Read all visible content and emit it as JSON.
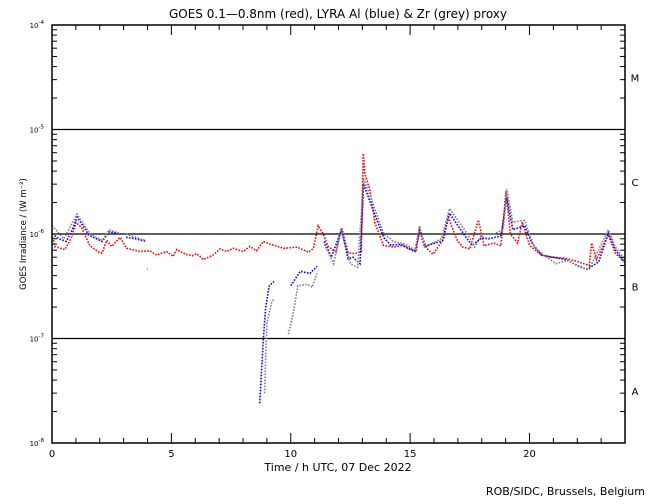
{
  "chart_data": {
    "type": "scatter",
    "title": "GOES 0.1—0.8nm (red), LYRA Al (blue) & Zr (grey) proxy",
    "xlabel": "Time / h UTC, 07 Dec 2022",
    "ylabel": "GOES Irradiance / (W m⁻²)",
    "xlim": [
      0,
      24
    ],
    "ylim": [
      1e-08,
      0.0001
    ],
    "yscale": "log",
    "x_ticks": [
      0,
      5,
      10,
      15,
      20
    ],
    "y_ticks": [
      {
        "base": "10",
        "exp": "-4"
      },
      {
        "base": "10",
        "exp": "-5"
      },
      {
        "base": "10",
        "exp": "-6"
      },
      {
        "base": "10",
        "exp": "-7"
      },
      {
        "base": "10",
        "exp": "-8"
      }
    ],
    "flare_classes": [
      {
        "label": "M",
        "value": 3.16e-05
      },
      {
        "label": "C",
        "value": 3.16e-06
      },
      {
        "label": "B",
        "value": 3.16e-07
      },
      {
        "label": "A",
        "value": 3.16e-08
      }
    ],
    "class_lines": [
      1e-05,
      1e-06,
      1e-07
    ],
    "credit": "ROB/SIDC, Brussels, Belgium",
    "series": [
      {
        "name": "GOES 0.1-0.8nm",
        "color": "#ff0000",
        "segments": [
          [
            [
              0.03,
              9.3e-07
            ],
            [
              0.12,
              7.6e-07
            ],
            [
              0.54,
              7.1e-07
            ],
            [
              0.82,
              9.3e-07
            ],
            [
              1.0,
              1.29e-06
            ],
            [
              1.24,
              1.15e-06
            ],
            [
              1.59,
              7.7e-07
            ],
            [
              2.0,
              6.6e-07
            ],
            [
              2.1,
              6.6e-07
            ],
            [
              2.29,
              8.7e-07
            ],
            [
              2.5,
              7.6e-07
            ],
            [
              2.85,
              9.3e-07
            ],
            [
              3.13,
              7.3e-07
            ],
            [
              3.69,
              6.8e-07
            ],
            [
              4.1,
              6.9e-07
            ],
            [
              4.38,
              6.3e-07
            ],
            [
              4.8,
              6.8e-07
            ],
            [
              5.08,
              6.1e-07
            ],
            [
              5.22,
              7.1e-07
            ],
            [
              5.6,
              6.4e-07
            ],
            [
              5.9,
              6.2e-07
            ],
            [
              6.05,
              6.5e-07
            ],
            [
              6.34,
              5.7e-07
            ],
            [
              6.75,
              6.3e-07
            ],
            [
              7.04,
              7.2e-07
            ],
            [
              7.3,
              6.8e-07
            ],
            [
              7.6,
              7.3e-07
            ],
            [
              8.0,
              6.8e-07
            ],
            [
              8.29,
              7.6e-07
            ],
            [
              8.57,
              6.9e-07
            ],
            [
              8.85,
              8.5e-07
            ],
            [
              9.13,
              8e-07
            ],
            [
              9.7,
              7.3e-07
            ],
            [
              10.26,
              7.5e-07
            ],
            [
              10.75,
              6.7e-07
            ],
            [
              10.95,
              7.3e-07
            ],
            [
              11.15,
              1.2e-06
            ],
            [
              11.36,
              1e-06
            ],
            [
              11.57,
              7.6e-07
            ],
            [
              11.9,
              6.7e-07
            ],
            [
              12.13,
              1.15e-06
            ],
            [
              12.4,
              6.6e-07
            ],
            [
              12.7,
              6.5e-07
            ],
            [
              12.95,
              6.8e-07
            ],
            [
              13.04,
              5.9e-06
            ],
            [
              13.1,
              3.8e-06
            ],
            [
              13.32,
              2.6e-06
            ],
            [
              13.53,
              1.27e-06
            ],
            [
              13.88,
              7.8e-07
            ],
            [
              14.3,
              7.5e-07
            ],
            [
              14.7,
              7.8e-07
            ],
            [
              15.25,
              6.8e-07
            ],
            [
              15.39,
              1.1e-06
            ],
            [
              15.7,
              7.3e-07
            ],
            [
              15.95,
              6.4e-07
            ],
            [
              16.4,
              8.9e-07
            ],
            [
              16.6,
              1.44e-06
            ],
            [
              16.95,
              8.9e-07
            ],
            [
              17.2,
              7.5e-07
            ],
            [
              17.5,
              7.2e-07
            ],
            [
              17.86,
              1.36e-06
            ],
            [
              18.1,
              7.7e-07
            ],
            [
              18.5,
              8.2e-07
            ],
            [
              18.8,
              7.7e-07
            ],
            [
              19.02,
              2.6e-06
            ],
            [
              19.2,
              1e-06
            ],
            [
              19.5,
              8.2e-07
            ],
            [
              19.7,
              1.3e-06
            ],
            [
              20.0,
              7.8e-07
            ],
            [
              20.5,
              6.3e-07
            ],
            [
              20.9,
              6e-07
            ],
            [
              21.4,
              5.9e-07
            ],
            [
              21.95,
              5.5e-07
            ],
            [
              22.5,
              5e-07
            ],
            [
              22.6,
              8.2e-07
            ],
            [
              22.8,
              5.7e-07
            ],
            [
              23.3,
              9.9e-07
            ],
            [
              23.6,
              6.5e-07
            ],
            [
              23.95,
              5.5e-07
            ]
          ]
        ]
      },
      {
        "name": "LYRA Al proxy",
        "color": "#0000ff",
        "segments": [
          [
            [
              0.0,
              1e-06
            ],
            [
              0.3,
              9e-07
            ],
            [
              0.6,
              8.5e-07
            ],
            [
              0.85,
              1.1e-06
            ],
            [
              1.05,
              1.45e-06
            ],
            [
              1.56,
              9.7e-07
            ],
            [
              2.1,
              8.5e-07
            ],
            [
              2.4,
              1.05e-06
            ],
            [
              2.9,
              1e-06
            ]
          ],
          [
            [
              3.1,
              9.3e-07
            ],
            [
              3.5,
              9e-07
            ],
            [
              3.94,
              8.5e-07
            ]
          ],
          [
            [
              4.0,
              4.6e-07
            ],
            [
              4.02,
              4.6e-07
            ]
          ],
          [
            [
              8.7,
              2.4e-08
            ],
            [
              8.85,
              9.8e-08
            ],
            [
              8.95,
              2e-07
            ],
            [
              9.1,
              3.2e-07
            ],
            [
              9.3,
              3.5e-07
            ]
          ],
          [
            [
              10.0,
              3.2e-07
            ],
            [
              10.4,
              4.4e-07
            ],
            [
              10.8,
              4.2e-07
            ],
            [
              11.1,
              4.9e-07
            ]
          ],
          [
            [
              11.4,
              8.5e-07
            ],
            [
              11.7,
              6e-07
            ],
            [
              12.13,
              1.1e-06
            ],
            [
              12.4,
              5.8e-07
            ],
            [
              12.6,
              6e-07
            ],
            [
              12.9,
              5.2e-07
            ],
            [
              13.05,
              3e-06
            ],
            [
              13.3,
              2.1e-06
            ],
            [
              13.6,
              1.37e-06
            ],
            [
              13.9,
              9.2e-07
            ],
            [
              14.2,
              7.8e-07
            ],
            [
              14.6,
              8e-07
            ],
            [
              14.9,
              7.3e-07
            ],
            [
              15.2,
              6.8e-07
            ],
            [
              15.4,
              1.08e-06
            ],
            [
              15.6,
              7.6e-07
            ],
            [
              16.35,
              8.6e-07
            ],
            [
              16.65,
              1.58e-06
            ],
            [
              17.0,
              1.2e-06
            ],
            [
              17.4,
              8.9e-07
            ],
            [
              17.6,
              7.8e-07
            ],
            [
              18.0,
              9.2e-07
            ],
            [
              18.3,
              9e-07
            ],
            [
              18.8,
              9.6e-07
            ],
            [
              19.05,
              2.2e-06
            ],
            [
              19.3,
              1.1e-06
            ],
            [
              19.8,
              1.2e-06
            ],
            [
              20.1,
              8.2e-07
            ],
            [
              20.5,
              6.3e-07
            ],
            [
              21.5,
              5.7e-07
            ],
            [
              22.0,
              5e-07
            ],
            [
              22.4,
              4.6e-07
            ],
            [
              22.9,
              5.4e-07
            ],
            [
              23.3,
              1.02e-06
            ],
            [
              23.6,
              7e-07
            ],
            [
              24.0,
              5.3e-07
            ]
          ]
        ]
      },
      {
        "name": "LYRA Zr proxy",
        "color": "#808080",
        "segments": [
          [
            [
              0.0,
              1.2e-06
            ],
            [
              0.5,
              9e-07
            ],
            [
              1.05,
              1.55e-06
            ],
            [
              1.6,
              1e-06
            ],
            [
              2.1,
              8.7e-07
            ],
            [
              2.4,
              1.1e-06
            ],
            [
              2.9,
              1e-06
            ]
          ],
          [
            [
              3.1,
              1e-06
            ],
            [
              3.9,
              8.7e-07
            ]
          ],
          [
            [
              8.9,
              3e-08
            ],
            [
              9.0,
              1.4e-07
            ],
            [
              9.2,
              2.2e-07
            ],
            [
              9.3,
              2.4e-07
            ]
          ],
          [
            [
              9.9,
              1.1e-07
            ],
            [
              10.1,
              1.7e-07
            ],
            [
              10.3,
              3.2e-07
            ],
            [
              10.7,
              3.3e-07
            ],
            [
              10.9,
              3.1e-07
            ],
            [
              11.1,
              4.2e-07
            ]
          ],
          [
            [
              11.4,
              8e-07
            ],
            [
              11.8,
              5.2e-07
            ],
            [
              12.1,
              1.1e-06
            ],
            [
              12.5,
              5.2e-07
            ],
            [
              12.8,
              4.8e-07
            ],
            [
              13.05,
              3.4e-06
            ],
            [
              13.3,
              2.4e-06
            ],
            [
              13.6,
              1.55e-06
            ],
            [
              13.9,
              1e-06
            ],
            [
              14.3,
              8.5e-07
            ],
            [
              14.8,
              8e-07
            ],
            [
              15.2,
              7e-07
            ],
            [
              15.4,
              1.2e-06
            ],
            [
              15.6,
              7.5e-07
            ],
            [
              16.3,
              9e-07
            ],
            [
              16.65,
              1.75e-06
            ],
            [
              17.0,
              1.35e-06
            ],
            [
              17.4,
              1e-06
            ],
            [
              17.7,
              7.5e-07
            ],
            [
              18.0,
              1e-06
            ],
            [
              18.5,
              1e-06
            ],
            [
              18.9,
              1.1e-06
            ],
            [
              19.05,
              2.7e-06
            ],
            [
              19.3,
              1.3e-06
            ],
            [
              19.8,
              1.35e-06
            ],
            [
              20.2,
              7.5e-07
            ],
            [
              20.6,
              6.3e-07
            ],
            [
              21.1,
              5.2e-07
            ],
            [
              21.6,
              5.6e-07
            ],
            [
              22.1,
              4.8e-07
            ],
            [
              22.5,
              4.6e-07
            ],
            [
              23.3,
              1.1e-06
            ],
            [
              23.6,
              7.5e-07
            ],
            [
              24.0,
              5.6e-07
            ]
          ]
        ]
      }
    ]
  }
}
